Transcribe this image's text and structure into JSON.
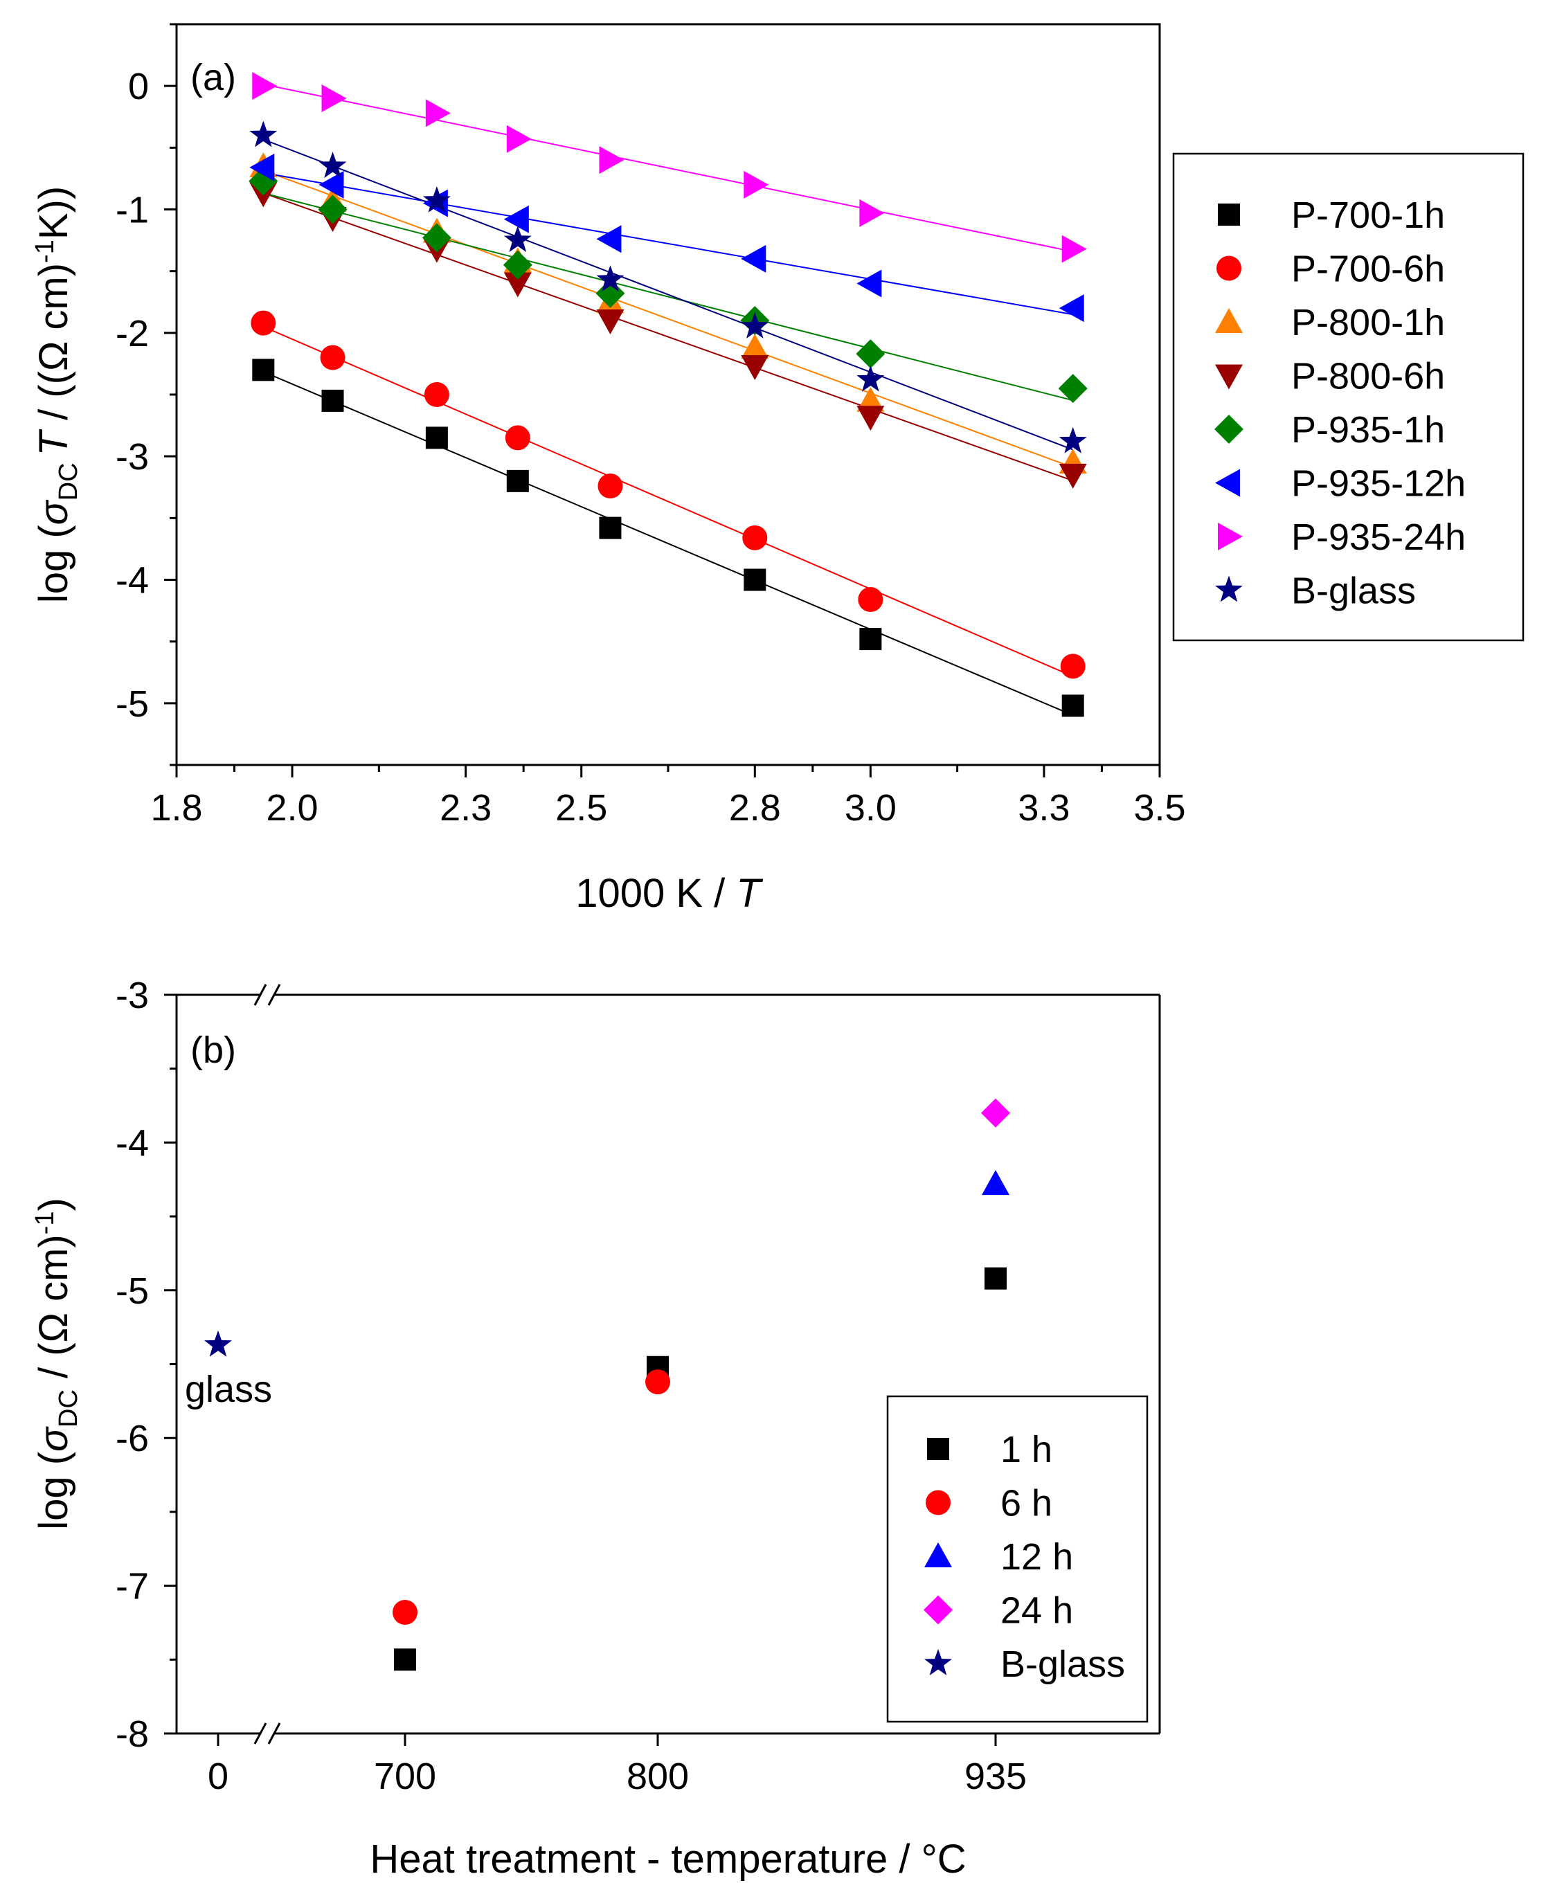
{
  "chart_data": [
    {
      "type": "scatter",
      "panel": "(a)",
      "xlabel_main": "1000 K / ",
      "xlabel_var": "T",
      "ylabel": {
        "prefix": "log (",
        "sigma": "σ",
        "sub": "DC",
        "var": "T",
        "middle": " / ((Ω cm)",
        "sup": "-1",
        "suffix": "K))"
      },
      "xlim": [
        1.8,
        3.5
      ],
      "ylim": [
        -5.5,
        0.5
      ],
      "xticks": [
        "1.8",
        "2.0",
        "2.3",
        "2.5",
        "2.8",
        "3.0",
        "3.3",
        "3.5"
      ],
      "xtick_values": [
        1.8,
        2.0,
        2.3,
        2.5,
        2.8,
        3.0,
        3.3,
        3.5
      ],
      "yticks": [
        "0",
        "-1",
        "-2",
        "-3",
        "-4",
        "-5"
      ],
      "ytick_values": [
        0,
        -1,
        -2,
        -3,
        -4,
        -5
      ],
      "x": [
        1.95,
        2.07,
        2.25,
        2.39,
        2.55,
        2.8,
        3.0,
        3.35
      ],
      "legend_position": "outside-right",
      "series": [
        {
          "name": "P-700-1h",
          "marker": "square",
          "color": "#000000",
          "values": [
            -2.3,
            -2.55,
            -2.85,
            -3.2,
            -3.58,
            -4.0,
            -4.48,
            -5.02
          ]
        },
        {
          "name": "P-700-6h",
          "marker": "circle",
          "color": "#ff0000",
          "values": [
            -1.92,
            -2.2,
            -2.5,
            -2.85,
            -3.24,
            -3.66,
            -4.16,
            -4.7
          ]
        },
        {
          "name": "P-800-1h",
          "marker": "triangle-up",
          "color": "#ff8000",
          "values": [
            -0.65,
            -0.93,
            -1.18,
            -1.42,
            -1.75,
            -2.12,
            -2.55,
            -3.05
          ]
        },
        {
          "name": "P-800-6h",
          "marker": "triangle-down",
          "color": "#990000",
          "values": [
            -0.87,
            -1.07,
            -1.32,
            -1.6,
            -1.9,
            -2.27,
            -2.68,
            -3.15
          ]
        },
        {
          "name": "P-935-1h",
          "marker": "diamond",
          "color": "#008000",
          "values": [
            -0.77,
            -1.0,
            -1.23,
            -1.45,
            -1.68,
            -1.9,
            -2.17,
            -2.45
          ]
        },
        {
          "name": "P-935-12h",
          "marker": "triangle-left",
          "color": "#0000ff",
          "values": [
            -0.66,
            -0.8,
            -0.95,
            -1.08,
            -1.24,
            -1.4,
            -1.6,
            -1.8
          ]
        },
        {
          "name": "P-935-24h",
          "marker": "triangle-right",
          "color": "#ff00ff",
          "values": [
            0.0,
            -0.1,
            -0.22,
            -0.43,
            -0.6,
            -0.8,
            -1.03,
            -1.32
          ]
        },
        {
          "name": "B-glass",
          "marker": "star",
          "color": "#000080",
          "values": [
            -0.4,
            -0.65,
            -0.93,
            -1.25,
            -1.57,
            -1.95,
            -2.38,
            -2.88
          ]
        }
      ]
    },
    {
      "type": "scatter",
      "panel": "(b)",
      "xlabel": "Heat treatment - temperature / °C",
      "ylabel": {
        "prefix": "log (",
        "sigma": "σ",
        "sub": "DC",
        "middle": " / (Ω cm)",
        "sup": "-1",
        "suffix": ")"
      },
      "ylim": [
        -8,
        -3
      ],
      "yticks": [
        "-3",
        "-4",
        "-5",
        "-6",
        "-7",
        "-8"
      ],
      "ytick_values": [
        -3,
        -4,
        -5,
        -6,
        -7,
        -8
      ],
      "categories": [
        "0",
        "700",
        "800",
        "935"
      ],
      "annotation": "glass",
      "legend_position": "bottom-right",
      "series": [
        {
          "name": "1 h",
          "marker": "square",
          "color": "#000000",
          "points": [
            {
              "category": "700",
              "y": -7.5
            },
            {
              "category": "800",
              "y": -5.52
            },
            {
              "category": "935",
              "y": -4.92
            }
          ]
        },
        {
          "name": "6 h",
          "marker": "circle",
          "color": "#ff0000",
          "points": [
            {
              "category": "700",
              "y": -7.18
            },
            {
              "category": "800",
              "y": -5.62
            }
          ]
        },
        {
          "name": "12 h",
          "marker": "triangle-up",
          "color": "#0000ff",
          "points": [
            {
              "category": "935",
              "y": -4.28
            }
          ]
        },
        {
          "name": "24 h",
          "marker": "diamond",
          "color": "#ff00ff",
          "points": [
            {
              "category": "935",
              "y": -3.8
            }
          ]
        },
        {
          "name": "B-glass",
          "marker": "star",
          "color": "#000080",
          "points": [
            {
              "category": "0",
              "y": -5.37
            }
          ]
        }
      ]
    }
  ]
}
